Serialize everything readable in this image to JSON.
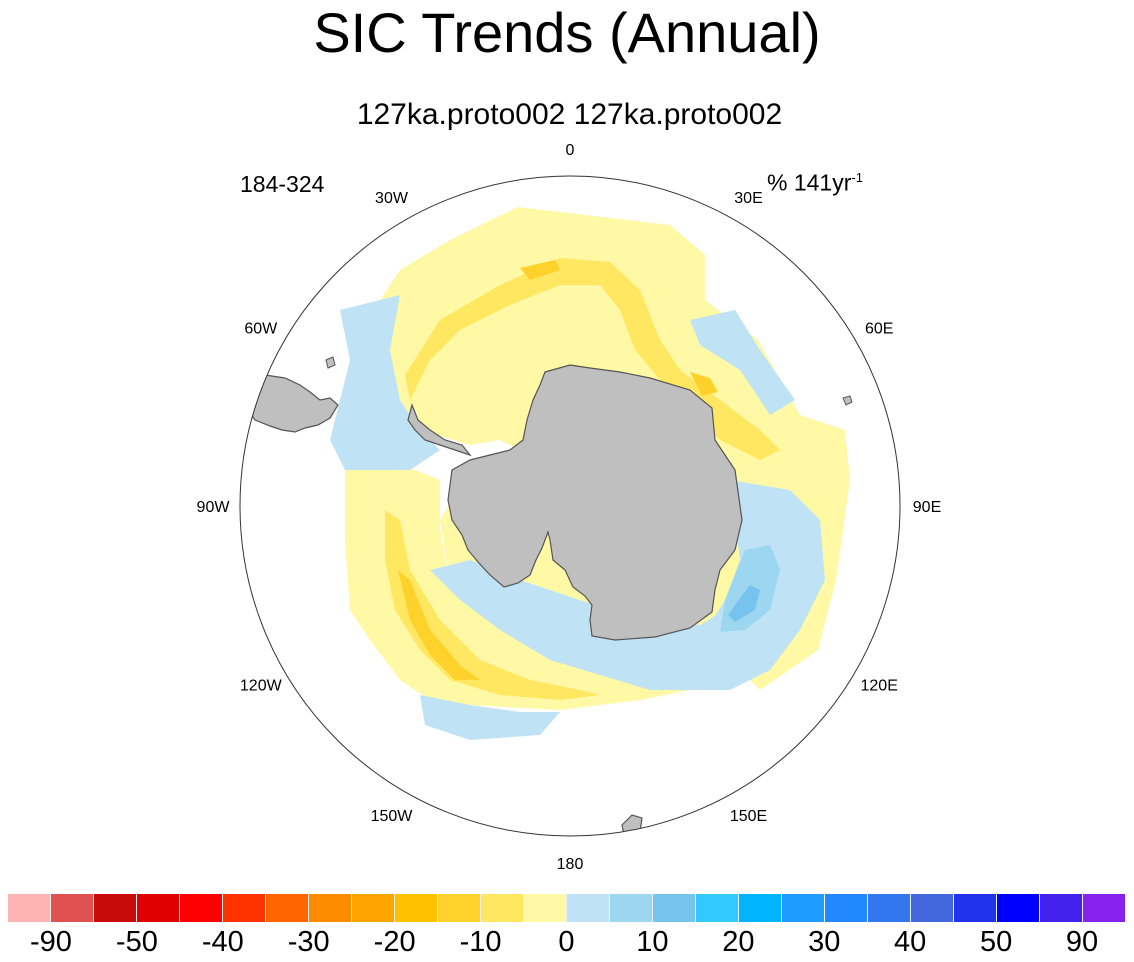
{
  "title": "SIC Trends (Annual)",
  "subtitle": "127ka.proto002  127ka.proto002",
  "period": "184-324",
  "units": {
    "prefix": "% 141yr",
    "exponent": "-1"
  },
  "map": {
    "projection": "south-polar-stereographic",
    "longitude_labels": [
      "0",
      "30E",
      "60E",
      "90E",
      "120E",
      "150E",
      "180",
      "150W",
      "120W",
      "90W",
      "60W",
      "30W"
    ],
    "colors": {
      "land": "#bfbfbf",
      "coast": "#555555",
      "ocean": "#ffffff",
      "light_yellow": "#fff9a6",
      "yellow": "#ffe762",
      "gold": "#ffd12b",
      "light_blue": "#bfe3f5",
      "blue": "#9dd6f0",
      "deep_blue": "#76c4ee"
    }
  },
  "colorbar": {
    "colors": [
      "#ffb4b4",
      "#e05252",
      "#c80a0a",
      "#e00000",
      "#ff0000",
      "#ff3300",
      "#ff6600",
      "#ff8c00",
      "#ffa500",
      "#ffc000",
      "#ffd12b",
      "#ffe762",
      "#fff9a6",
      "#bfe3f5",
      "#9dd6f0",
      "#76c4ee",
      "#33c8ff",
      "#00b4ff",
      "#1e9bff",
      "#2288ff",
      "#3377ee",
      "#4466dd",
      "#2233ee",
      "#0000ff",
      "#4422ee",
      "#8822ee"
    ],
    "labels": [
      "-90",
      "-50",
      "-40",
      "-30",
      "-20",
      "-10",
      "0",
      "10",
      "20",
      "30",
      "40",
      "50",
      "90"
    ]
  }
}
